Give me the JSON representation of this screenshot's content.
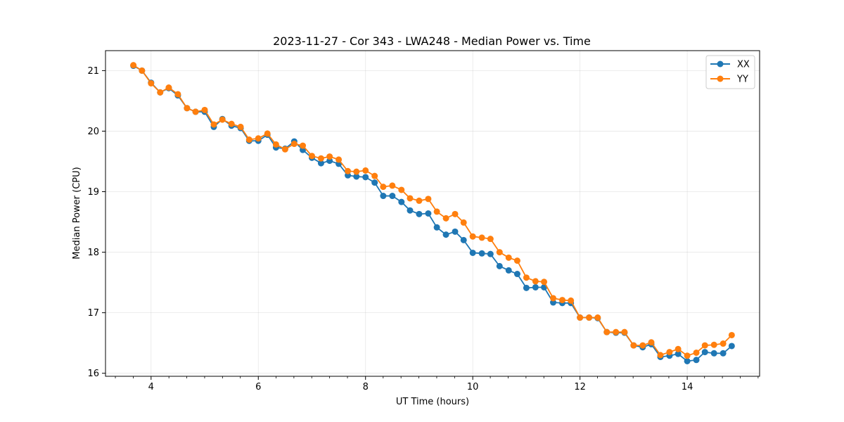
{
  "chart_data": {
    "type": "line",
    "title": "2023-11-27 - Cor 343 - LWA248 - Median Power vs. Time",
    "xlabel": "UT Time (hours)",
    "ylabel": "Median Power (CPU)",
    "xlim": [
      3.15,
      15.35
    ],
    "ylim": [
      15.95,
      21.33
    ],
    "xticks": [
      4,
      6,
      8,
      10,
      12,
      14
    ],
    "yticks": [
      16,
      17,
      18,
      19,
      20,
      21
    ],
    "xminor_step": 0.333,
    "grid": true,
    "legend_position": "top-right",
    "x": [
      3.67,
      3.83,
      4.0,
      4.17,
      4.33,
      4.5,
      4.67,
      4.83,
      5.0,
      5.17,
      5.33,
      5.5,
      5.67,
      5.83,
      6.0,
      6.17,
      6.33,
      6.5,
      6.67,
      6.83,
      7.0,
      7.17,
      7.33,
      7.5,
      7.67,
      7.83,
      8.0,
      8.17,
      8.33,
      8.5,
      8.67,
      8.83,
      9.0,
      9.17,
      9.33,
      9.5,
      9.67,
      9.83,
      10.0,
      10.17,
      10.33,
      10.5,
      10.67,
      10.83,
      11.0,
      11.17,
      11.33,
      11.5,
      11.67,
      11.83,
      12.0,
      12.17,
      12.33,
      12.5,
      12.67,
      12.83,
      13.0,
      13.17,
      13.33,
      13.5,
      13.67,
      13.83,
      14.0,
      14.17,
      14.33,
      14.5,
      14.67,
      14.83
    ],
    "series": [
      {
        "name": "XX",
        "color": "#1f77b4",
        "values": [
          21.08,
          21.0,
          20.8,
          20.64,
          20.71,
          20.59,
          20.38,
          20.32,
          20.32,
          20.07,
          20.2,
          20.09,
          20.05,
          19.84,
          19.84,
          19.94,
          19.73,
          19.71,
          19.83,
          19.69,
          19.56,
          19.47,
          19.51,
          19.46,
          19.27,
          19.25,
          19.24,
          19.15,
          18.93,
          18.93,
          18.83,
          18.69,
          18.63,
          18.64,
          18.41,
          18.29,
          18.34,
          18.2,
          17.99,
          17.98,
          17.97,
          17.77,
          17.7,
          17.64,
          17.41,
          17.42,
          17.42,
          17.17,
          17.16,
          17.16,
          16.92,
          16.92,
          16.91,
          16.68,
          16.67,
          16.67,
          16.46,
          16.43,
          16.48,
          16.27,
          16.29,
          16.32,
          16.2,
          16.22,
          16.35,
          16.33,
          16.33,
          16.45
        ]
      },
      {
        "name": "YY",
        "color": "#ff7f0e",
        "values": [
          21.09,
          21.0,
          20.79,
          20.64,
          20.72,
          20.61,
          20.38,
          20.32,
          20.35,
          20.11,
          20.19,
          20.12,
          20.07,
          19.86,
          19.88,
          19.96,
          19.78,
          19.7,
          19.79,
          19.76,
          19.59,
          19.55,
          19.58,
          19.53,
          19.34,
          19.33,
          19.35,
          19.26,
          19.08,
          19.1,
          19.03,
          18.89,
          18.85,
          18.88,
          18.67,
          18.56,
          18.63,
          18.49,
          18.26,
          18.24,
          18.22,
          18.0,
          17.91,
          17.86,
          17.58,
          17.52,
          17.51,
          17.24,
          17.21,
          17.2,
          16.92,
          16.92,
          16.92,
          16.68,
          16.68,
          16.68,
          16.46,
          16.46,
          16.51,
          16.3,
          16.35,
          16.4,
          16.29,
          16.34,
          16.46,
          16.47,
          16.49,
          16.63
        ]
      }
    ]
  }
}
